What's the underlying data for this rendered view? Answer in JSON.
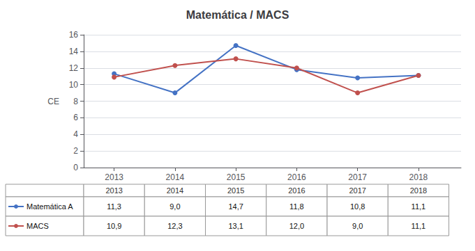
{
  "chart_data": {
    "type": "line",
    "title": "Matemática / MACS",
    "x": [
      2013,
      2014,
      2015,
      2016,
      2017,
      2018
    ],
    "xlim": [
      2012.5,
      2018.7
    ],
    "xticks": [
      2013,
      2014,
      2015,
      2016,
      2017,
      2018
    ],
    "ylabel": "CE",
    "ylim": [
      0,
      16
    ],
    "yticks": [
      0,
      2,
      4,
      6,
      8,
      10,
      12,
      14,
      16
    ],
    "grid": true,
    "marker": "circle",
    "line_style": "solid",
    "series": [
      {
        "name": "Matemática A",
        "color": "#4472C4",
        "values": [
          11.3,
          9.0,
          14.7,
          11.8,
          10.8,
          11.1
        ],
        "value_labels": [
          "11,3",
          "9,0",
          "14,7",
          "11,8",
          "10,8",
          "11,1"
        ]
      },
      {
        "name": "MACS",
        "color": "#C0504D",
        "values": [
          10.9,
          12.3,
          13.1,
          12.0,
          9.0,
          11.1
        ],
        "value_labels": [
          "10,9",
          "12,3",
          "13,1",
          "12,0",
          "9,0",
          "11,1"
        ]
      }
    ]
  }
}
